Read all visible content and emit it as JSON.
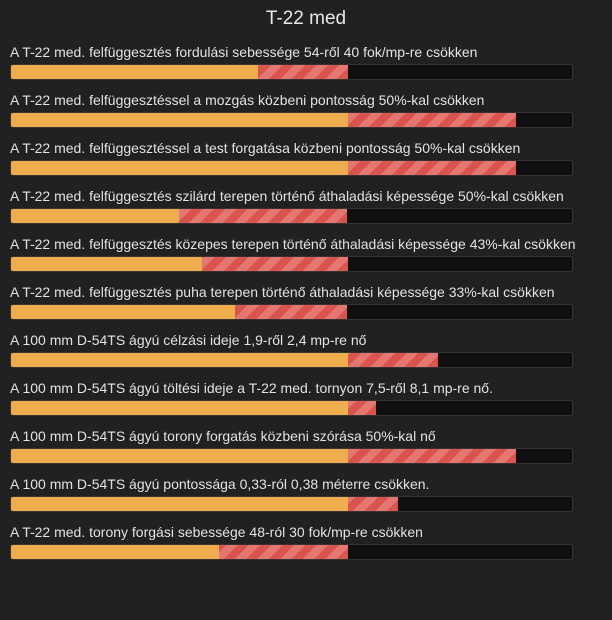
{
  "window": {
    "title": "T-22 med"
  },
  "stats": [
    {
      "label": "A T-22 med. felfüggesztés fordulási sebessége 54-ről 40 fok/mp-re csökken",
      "base_fraction": 0.44,
      "delta_fraction": 0.16,
      "direction": "decrease"
    },
    {
      "label": "A T-22 med. felfüggesztéssel a mozgás közbeni pontosság 50%-kal csökken",
      "base_fraction": 0.6,
      "delta_fraction": 0.3,
      "direction": "decrease"
    },
    {
      "label": "A T-22 med. felfüggesztéssel a test forgatása közbeni pontosság 50%-kal csökken",
      "base_fraction": 0.6,
      "delta_fraction": 0.3,
      "direction": "decrease"
    },
    {
      "label": "A T-22 med. felfüggesztés szilárd terepen történő áthaladási képessége 50%-kal csökken",
      "base_fraction": 0.3,
      "delta_fraction": 0.3,
      "direction": "decrease"
    },
    {
      "label": "A T-22 med. felfüggesztés közepes terepen történő áthaladási képessége 43%-kal csökken",
      "base_fraction": 0.34,
      "delta_fraction": 0.26,
      "direction": "decrease"
    },
    {
      "label": "A T-22 med. felfüggesztés puha terepen történő áthaladási képessége 33%-kal csökken",
      "base_fraction": 0.4,
      "delta_fraction": 0.2,
      "direction": "decrease"
    },
    {
      "label": "A 100 mm D-54TS ágyú célzási ideje 1,9-ről 2,4 mp-re nő",
      "base_fraction": 0.6,
      "delta_fraction": 0.16,
      "direction": "increase"
    },
    {
      "label": "A 100 mm D-54TS ágyú töltési ideje a T-22 med. tornyon 7,5-ről 8,1 mp-re nő.",
      "base_fraction": 0.6,
      "delta_fraction": 0.05,
      "direction": "increase"
    },
    {
      "label": "A 100 mm D-54TS ágyú torony forgatás közbeni szórása 50%-kal nő",
      "base_fraction": 0.6,
      "delta_fraction": 0.3,
      "direction": "increase"
    },
    {
      "label": "A 100 mm D-54TS ágyú pontossága 0,33-ról 0,38 méterre csökken.",
      "base_fraction": 0.6,
      "delta_fraction": 0.09,
      "direction": "increase"
    },
    {
      "label": "A T-22 med. torony forgási sebessége 48-ról 30 fok/mp-re csökken",
      "base_fraction": 0.37,
      "delta_fraction": 0.23,
      "direction": "decrease"
    }
  ],
  "colors": {
    "base_fill": "#f0ad4e",
    "delta_fill": "#d9534f",
    "track": "#0f0f0f",
    "background": "#212121"
  }
}
